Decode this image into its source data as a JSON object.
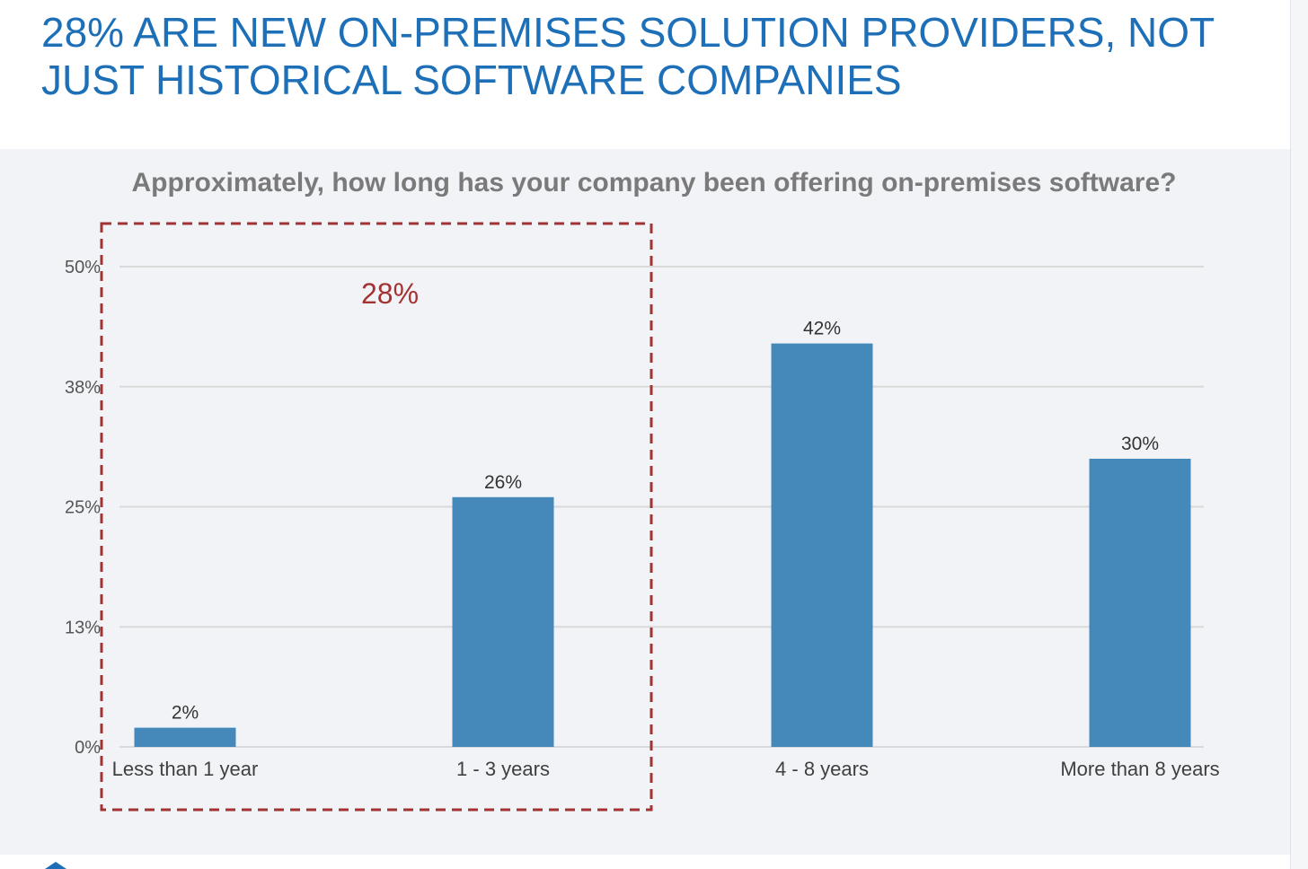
{
  "slide": {
    "title": "28% ARE NEW ON-PREMISES SOLUTION PROVIDERS, NOT JUST HISTORICAL SOFTWARE COMPANIES"
  },
  "chart_data": {
    "type": "bar",
    "title": "Approximately, how long has your company been offering on-premises software?",
    "categories": [
      "Less than 1 year",
      "1 - 3 years",
      "4 - 8 years",
      "More than 8 years"
    ],
    "values": [
      2,
      26,
      42,
      30
    ],
    "data_labels": [
      "2%",
      "26%",
      "42%",
      "30%"
    ],
    "yticks": [
      0,
      12.5,
      25,
      37.5,
      50
    ],
    "ytick_labels": [
      "0%",
      "13%",
      "25%",
      "38%",
      "50%"
    ],
    "ylim": [
      0,
      50
    ],
    "grid": true,
    "bar_color": "#4589bb",
    "highlight": {
      "categories": [
        "Less than 1 year",
        "1 - 3 years"
      ],
      "label": "28%",
      "color": "#a33333"
    }
  }
}
